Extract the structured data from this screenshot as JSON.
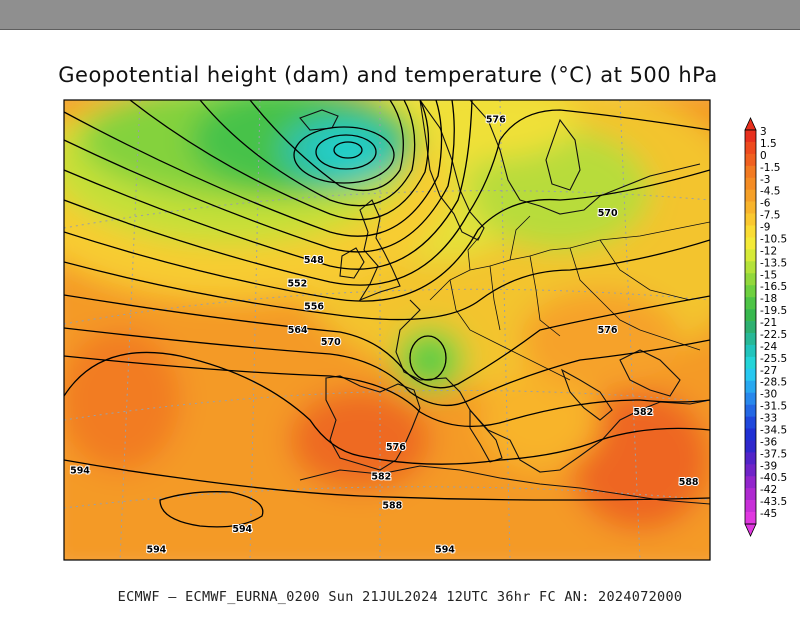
{
  "title": "Geopotential height (dam) and temperature (°C) at 500 hPa",
  "footer": "ECMWF – ECMWF_EURNA_0200 Sun 21JUL2024 12UTC 36hr FC AN: 2024072000",
  "colorbar": {
    "levels": [
      "3",
      "1.5",
      "0",
      "-1.5",
      "-3",
      "-4.5",
      "-6",
      "-7.5",
      "-9",
      "-10.5",
      "-12",
      "-13.5",
      "-15",
      "-16.5",
      "-18",
      "-19.5",
      "-21",
      "-22.5",
      "-24",
      "-25.5",
      "-27",
      "-28.5",
      "-30",
      "-31.5",
      "-33",
      "-34.5",
      "-36",
      "-37.5",
      "-39",
      "-40.5",
      "-42",
      "-43.5",
      "-45"
    ],
    "colors": [
      "#e8301e",
      "#ee4a1e",
      "#f06020",
      "#f27a22",
      "#f48c24",
      "#f5a028",
      "#f8b42c",
      "#fac830",
      "#fadc34",
      "#f4ea38",
      "#d6ea38",
      "#b4e23a",
      "#92d83c",
      "#6ed040",
      "#4ec446",
      "#38b84e",
      "#2eb070",
      "#28b896",
      "#22c4bc",
      "#24d4d8",
      "#28c8f0",
      "#28a8f0",
      "#2888ec",
      "#2468e4",
      "#2048dc",
      "#2030d4",
      "#3028cc",
      "#5224c8",
      "#7024c8",
      "#9226cc",
      "#ae2ad0",
      "#c830d8",
      "#e038e0"
    ]
  },
  "contour_labels": [
    {
      "text": "548",
      "lon": -10,
      "lat": 58
    },
    {
      "text": "552",
      "lon": -11,
      "lat": 56
    },
    {
      "text": "556",
      "lon": -8.5,
      "lat": 54
    },
    {
      "text": "564",
      "lon": -9.5,
      "lat": 52
    },
    {
      "text": "570",
      "lon": -6,
      "lat": 51
    },
    {
      "text": "576",
      "lon": 14,
      "lat": 70
    },
    {
      "text": "570",
      "lon": 26,
      "lat": 62
    },
    {
      "text": "576",
      "lon": 21,
      "lat": 52
    },
    {
      "text": "582",
      "lon": 22,
      "lat": 45
    },
    {
      "text": "588",
      "lon": 24,
      "lat": 39
    },
    {
      "text": "576",
      "lon": 1,
      "lat": 42
    },
    {
      "text": "582",
      "lon": 0,
      "lat": 39.5
    },
    {
      "text": "588",
      "lon": 1,
      "lat": 37
    },
    {
      "text": "594",
      "lon": -30,
      "lat": 40
    },
    {
      "text": "594",
      "lon": -10,
      "lat": 35
    },
    {
      "text": "594",
      "lon": 5,
      "lat": 32
    },
    {
      "text": "594",
      "lon": -15,
      "lat": 29
    }
  ]
}
